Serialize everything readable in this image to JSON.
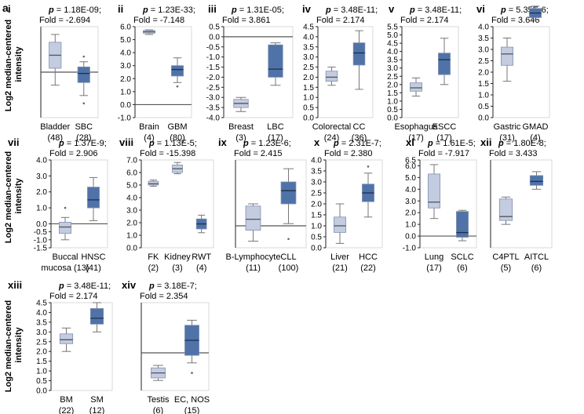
{
  "figure_label": "a",
  "y_axis_label_line1": "Log2 median-centered",
  "y_axis_label_line2": "intensity",
  "colors": {
    "normal_box": "#c3cce0",
    "tumor_box": "#4f73a8",
    "axis": "#222222",
    "zero_line": "#555555"
  },
  "chart_data": [
    {
      "type": "box",
      "panel": "i",
      "p_value": "1.18E-09;",
      "fold_label": "Fold = -2.694",
      "yticks": [],
      "ylim": [
        -3.5,
        3.5
      ],
      "groups": [
        {
          "name": "Bladder",
          "name2": "",
          "n": "(48)",
          "kind": "normal",
          "q1": 0.3,
          "median": 1.3,
          "q3": 2.3,
          "wlo": -1.0,
          "whi": 2.9,
          "out": []
        },
        {
          "name": "SBC",
          "name2": "",
          "n": "(28)",
          "kind": "tumor",
          "q1": -0.8,
          "median": -0.1,
          "q3": 0.4,
          "wlo": -1.8,
          "whi": 0.8,
          "out": [
            -2.4,
            1.2
          ]
        }
      ]
    },
    {
      "type": "box",
      "panel": "ii",
      "p_value": "1.23E-33;",
      "fold_label": "Fold = -7.148",
      "yticks": [
        "6.0",
        "5.0",
        "4.0",
        "3.0",
        "2.0",
        "1.0",
        "0.0",
        "-1.0"
      ],
      "ylim": [
        -1.0,
        6.0
      ],
      "groups": [
        {
          "name": "Brain",
          "name2": "",
          "n": "(4)",
          "kind": "normal",
          "q1": 5.5,
          "median": 5.6,
          "q3": 5.7,
          "wlo": 5.4,
          "whi": 5.75,
          "out": []
        },
        {
          "name": "GBM",
          "name2": "",
          "n": "(80)",
          "kind": "tumor",
          "q1": 2.2,
          "median": 2.7,
          "q3": 3.0,
          "wlo": 1.7,
          "whi": 3.6,
          "out": [
            1.4
          ]
        }
      ]
    },
    {
      "type": "box",
      "panel": "iii",
      "p_value": "1.31E-05;",
      "fold_label": "Fold = 3.861",
      "yticks": [
        "0.5",
        "0.0",
        "-0.5",
        "-1.0",
        "-1.5",
        "-2.0",
        "-2.5",
        "-3.0",
        "-3.5",
        "-4.0"
      ],
      "ylim": [
        -4.0,
        0.5
      ],
      "groups": [
        {
          "name": "Breast",
          "name2": "",
          "n": "(3)",
          "kind": "normal",
          "q1": -3.5,
          "median": -3.3,
          "q3": -3.1,
          "wlo": -3.7,
          "whi": -3.0,
          "out": []
        },
        {
          "name": "LBC",
          "name2": "",
          "n": "(17)",
          "kind": "tumor",
          "q1": -2.0,
          "median": -1.6,
          "q3": -0.4,
          "wlo": -2.4,
          "whi": -0.3,
          "out": []
        }
      ]
    },
    {
      "type": "box",
      "panel": "iv",
      "p_value": "3.48E-11;",
      "fold_label": "Fold = 2.174",
      "yticks": [
        "4.5",
        "4.0",
        "3.5",
        "3.0",
        "2.5",
        "2.0",
        "1.5",
        "1.0",
        "0.5",
        "0.0"
      ],
      "ylim": [
        0.0,
        4.5
      ],
      "groups": [
        {
          "name": "Colorectal",
          "name2": "",
          "n": "(24)",
          "kind": "normal",
          "q1": 1.8,
          "median": 2.0,
          "q3": 2.3,
          "wlo": 1.6,
          "whi": 2.5,
          "out": []
        },
        {
          "name": "CC",
          "name2": "",
          "n": "(36)",
          "kind": "tumor",
          "q1": 2.6,
          "median": 3.2,
          "q3": 3.7,
          "wlo": 1.4,
          "whi": 4.3,
          "out": []
        }
      ]
    },
    {
      "type": "box",
      "panel": "v",
      "p_value": "3.48E-11;",
      "fold_label": "Fold = 2.174",
      "yticks": [
        "5.5",
        "5.0",
        "4.5",
        "4.0",
        "3.5",
        "3.0",
        "2.5",
        "2.0",
        "1.5",
        "1.0",
        "0.5",
        "0.0"
      ],
      "ylim": [
        0.0,
        5.5
      ],
      "groups": [
        {
          "name": "Esophagus",
          "name2": "",
          "n": "(17)",
          "kind": "normal",
          "q1": 1.6,
          "median": 1.8,
          "q3": 2.1,
          "wlo": 1.3,
          "whi": 2.4,
          "out": []
        },
        {
          "name": "ESCC",
          "name2": "",
          "n": "(17)",
          "kind": "tumor",
          "q1": 2.6,
          "median": 3.5,
          "q3": 3.9,
          "wlo": 2.0,
          "whi": 4.8,
          "out": []
        }
      ]
    },
    {
      "type": "box",
      "panel": "vi",
      "p_value": "5.35E-6;",
      "fold_label": "Fold = 3.646",
      "yticks": [
        "4.0",
        "3.5",
        "3.0",
        "2.5",
        "2.0",
        "1.5",
        "1.0",
        "0.5",
        "0.0"
      ],
      "ylim": [
        0.0,
        4.0
      ],
      "groups": [
        {
          "name": "Gastric",
          "name2": "",
          "n": "(31)",
          "kind": "normal",
          "q1": 2.3,
          "median": 2.8,
          "q3": 3.1,
          "wlo": 1.6,
          "whi": 3.5,
          "out": []
        },
        {
          "name": "GMAD",
          "name2": "",
          "n": "(4)",
          "kind": "tumor",
          "q1": 4.4,
          "median": 4.6,
          "q3": 4.8,
          "wlo": 4.3,
          "whi": 4.9,
          "out": []
        }
      ]
    },
    {
      "type": "box",
      "panel": "vii",
      "p_value": "1.37E-9;",
      "fold_label": "Fold = 2.906",
      "yticks": [
        "4.0",
        "3.0",
        "2.0",
        "1.0",
        "0.0",
        "-0.5",
        "-1.0",
        "-1.5"
      ],
      "ylim": [
        -1.5,
        4.0
      ],
      "groups": [
        {
          "name": "Buccal",
          "name2": "mucosa (13)",
          "n": "",
          "kind": "normal",
          "q1": -0.6,
          "median": -0.2,
          "q3": 0.1,
          "wlo": -1.0,
          "whi": 0.4,
          "out": [
            1.0
          ]
        },
        {
          "name": "HNSC",
          "name2": "",
          "n": "(41)",
          "kind": "tumor",
          "q1": 1.0,
          "median": 1.5,
          "q3": 2.3,
          "wlo": 0.2,
          "whi": 2.9,
          "out": []
        }
      ]
    },
    {
      "type": "box",
      "panel": "viii",
      "p_value": "1.13E-5;",
      "fold_label": "Fold = -15.398",
      "yticks": [
        "7.0",
        "6.0",
        "5.0",
        "4.0",
        "3.0",
        "2.0",
        "1.0",
        "0.0"
      ],
      "ylim": [
        0.0,
        7.0
      ],
      "groups": [
        {
          "name": "FK",
          "name2": "",
          "n": "(2)",
          "kind": "normal",
          "q1": 5.0,
          "median": 5.1,
          "q3": 5.3,
          "wlo": 4.9,
          "whi": 5.4,
          "out": []
        },
        {
          "name": "Kidney",
          "name2": "",
          "n": "(3)",
          "kind": "normal",
          "q1": 6.0,
          "median": 6.3,
          "q3": 6.6,
          "wlo": 5.9,
          "whi": 6.8,
          "out": []
        },
        {
          "name": "RWT",
          "name2": "",
          "n": "(4)",
          "kind": "tumor",
          "q1": 1.5,
          "median": 1.9,
          "q3": 2.3,
          "wlo": 1.2,
          "whi": 2.6,
          "out": []
        }
      ]
    },
    {
      "type": "box",
      "panel": "ix",
      "p_value": "1.23E-6;",
      "fold_label": "Fold = 2.415",
      "yticks": [],
      "ylim": [
        -1.0,
        3.0
      ],
      "groups": [
        {
          "name": "B-Lymphocyte",
          "name2": "",
          "n": "(11)",
          "kind": "normal",
          "q1": -0.2,
          "median": 0.3,
          "q3": 0.9,
          "wlo": -0.7,
          "whi": 1.0,
          "out": []
        },
        {
          "name": "CLL",
          "name2": "",
          "n": "(100)",
          "kind": "tumor",
          "q1": 1.0,
          "median": 1.6,
          "q3": 2.0,
          "wlo": 0.1,
          "whi": 2.6,
          "out": [
            -0.6
          ]
        }
      ]
    },
    {
      "type": "box",
      "panel": "x",
      "p_value": "2.31E-7;",
      "fold_label": "Fold = 2.380",
      "yticks": [
        "4.0",
        "3.5",
        "3.0",
        "2.5",
        "2.0",
        "1.5",
        "1.0",
        "0.5",
        "0.0"
      ],
      "ylim": [
        0.0,
        4.0
      ],
      "groups": [
        {
          "name": "Liver",
          "name2": "",
          "n": "(21)",
          "kind": "normal",
          "q1": 0.7,
          "median": 1.0,
          "q3": 1.4,
          "wlo": 0.2,
          "whi": 2.0,
          "out": []
        },
        {
          "name": "HCC",
          "name2": "",
          "n": "(22)",
          "kind": "tumor",
          "q1": 2.1,
          "median": 2.5,
          "q3": 2.9,
          "wlo": 1.4,
          "whi": 3.4,
          "out": [
            3.7
          ]
        }
      ]
    },
    {
      "type": "box",
      "panel": "xi",
      "p_value": "1.61E-5;",
      "fold_label": "Fold = -7.917",
      "yticks": [
        "6.5",
        "6.0",
        "5.0",
        "4.0",
        "3.0",
        "2.0",
        "1.0",
        "0.0",
        "-1.0"
      ],
      "ylim": [
        -1.0,
        6.5
      ],
      "groups": [
        {
          "name": "Lung",
          "name2": "",
          "n": "(17)",
          "kind": "normal",
          "q1": 2.4,
          "median": 2.9,
          "q3": 5.3,
          "wlo": 1.5,
          "whi": 6.1,
          "out": []
        },
        {
          "name": "SCLC",
          "name2": "",
          "n": "(6)",
          "kind": "tumor",
          "q1": -0.1,
          "median": 0.3,
          "q3": 2.1,
          "wlo": -0.4,
          "whi": 2.2,
          "out": []
        }
      ]
    },
    {
      "type": "box",
      "panel": "xii",
      "p_value": "1.80E-8;",
      "fold_label": "Fold = 3.433",
      "yticks": [],
      "ylim": [
        0.0,
        4.5
      ],
      "groups": [
        {
          "name": "C4PTL",
          "name2": "",
          "n": "(5)",
          "kind": "normal",
          "q1": 1.4,
          "median": 1.6,
          "q3": 2.5,
          "wlo": 1.2,
          "whi": 2.6,
          "out": []
        },
        {
          "name": "AITCL",
          "name2": "",
          "n": "(6)",
          "kind": "tumor",
          "q1": 3.2,
          "median": 3.4,
          "q3": 3.7,
          "wlo": 3.0,
          "whi": 3.9,
          "out": []
        }
      ]
    },
    {
      "type": "box",
      "panel": "xiii",
      "p_value": "3.48E-11;",
      "fold_label": "Fold = 2.174",
      "yticks": [
        "4.5",
        "4.0",
        "3.5",
        "3.0",
        "2.5",
        "2.0",
        "1.5",
        "1.0",
        "0.5",
        "0.0"
      ],
      "ylim": [
        0.0,
        4.5
      ],
      "groups": [
        {
          "name": "BM",
          "name2": "",
          "n": "(22)",
          "kind": "normal",
          "q1": 2.4,
          "median": 2.6,
          "q3": 2.9,
          "wlo": 2.0,
          "whi": 3.2,
          "out": []
        },
        {
          "name": "SM",
          "name2": "",
          "n": "(12)",
          "kind": "tumor",
          "q1": 3.4,
          "median": 3.7,
          "q3": 4.2,
          "wlo": 3.0,
          "whi": 4.5,
          "out": []
        }
      ]
    },
    {
      "type": "box",
      "panel": "xiv",
      "p_value": "3.18E-7;",
      "fold_label": "Fold = 2.354",
      "yticks": [],
      "ylim": [
        -1.5,
        2.0
      ],
      "groups": [
        {
          "name": "Testis",
          "name2": "",
          "n": "(6)",
          "kind": "normal",
          "q1": -1.0,
          "median": -0.8,
          "q3": -0.6,
          "wlo": -1.1,
          "whi": -0.5,
          "out": []
        },
        {
          "name": "EC, NOS",
          "name2": "",
          "n": "(15)",
          "kind": "tumor",
          "q1": -0.1,
          "median": 0.5,
          "q3": 1.1,
          "wlo": -0.4,
          "whi": 1.3,
          "out": [
            -0.8
          ]
        }
      ]
    }
  ]
}
